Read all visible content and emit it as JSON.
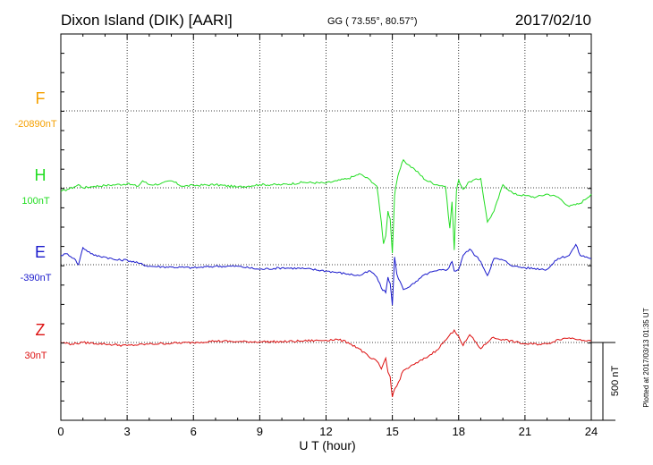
{
  "header": {
    "station": "Dixon Island (DIK)  [AARI]",
    "coords": "GG ( 73.55°,  80.57°)",
    "date": "2017/02/10"
  },
  "side_note": "Plotted at 2017/03/13 01:35 UT",
  "scale_label": "500 nT",
  "chart_data": {
    "type": "line",
    "xlabel": "U T (hour)",
    "xlim": [
      0,
      24
    ],
    "xticks": [
      "0",
      "3",
      "6",
      "9",
      "12",
      "15",
      "18",
      "21",
      "24"
    ],
    "channels": [
      {
        "letter": "F",
        "baseline": "-20890nT",
        "color": "#f5a000"
      },
      {
        "letter": "H",
        "baseline": "100nT",
        "color": "#22dd22"
      },
      {
        "letter": "E",
        "baseline": "-390nT",
        "color": "#1a1acc"
      },
      {
        "letter": "Z",
        "baseline": "30nT",
        "color": "#dd1111"
      }
    ],
    "series": [
      {
        "name": "H",
        "color": "#22dd22",
        "x": [
          0,
          0.3,
          0.6,
          0.8,
          1.0,
          1.5,
          2.0,
          2.5,
          3.0,
          3.5,
          3.7,
          4.0,
          4.5,
          5.0,
          5.5,
          6.0,
          7.0,
          8.0,
          9.0,
          10.0,
          11.0,
          12.0,
          12.5,
          13.0,
          13.3,
          13.5,
          14.0,
          14.3,
          14.5,
          14.6,
          14.7,
          14.8,
          14.9,
          15.0,
          15.1,
          15.2,
          15.3,
          15.5,
          15.7,
          16.0,
          16.5,
          17.0,
          17.4,
          17.6,
          17.7,
          17.8,
          17.9,
          18.0,
          18.2,
          18.5,
          19.0,
          19.3,
          19.6,
          20.0,
          20.5,
          21.0,
          21.5,
          22.0,
          22.5,
          23.0,
          23.5,
          24.0
        ],
        "y": [
          -25,
          -10,
          5,
          20,
          0,
          10,
          15,
          20,
          25,
          10,
          45,
          20,
          25,
          45,
          10,
          15,
          20,
          5,
          20,
          20,
          35,
          30,
          45,
          60,
          75,
          90,
          50,
          10,
          -220,
          -360,
          -310,
          -150,
          -200,
          -420,
          -50,
          40,
          100,
          180,
          150,
          120,
          50,
          20,
          10,
          -260,
          -90,
          -400,
          -20,
          50,
          -10,
          40,
          60,
          -220,
          -150,
          20,
          -40,
          -50,
          -60,
          -40,
          -60,
          -120,
          -100,
          -40
        ]
      },
      {
        "name": "E",
        "color": "#1a1acc",
        "x": [
          0,
          0.3,
          0.6,
          0.8,
          1.0,
          1.5,
          2.0,
          2.5,
          3.0,
          3.5,
          4.0,
          5.0,
          6.0,
          7.0,
          8.0,
          9.0,
          10.0,
          11.0,
          12.0,
          13.0,
          13.5,
          14.0,
          14.3,
          14.5,
          14.7,
          14.8,
          14.9,
          15.0,
          15.1,
          15.2,
          15.5,
          16.0,
          16.5,
          17.0,
          17.5,
          17.7,
          17.8,
          18.0,
          18.2,
          18.5,
          19.0,
          19.3,
          19.6,
          20.0,
          20.5,
          21.0,
          22.0,
          22.5,
          23.0,
          23.3,
          23.5,
          24.0
        ],
        "y": [
          60,
          70,
          40,
          0,
          110,
          60,
          50,
          30,
          30,
          10,
          -10,
          -15,
          -20,
          -10,
          -10,
          -30,
          -20,
          -25,
          -40,
          -60,
          -70,
          -40,
          -80,
          -150,
          -180,
          -80,
          -120,
          -260,
          50,
          -60,
          -160,
          -120,
          -60,
          -40,
          -30,
          20,
          -40,
          -30,
          60,
          100,
          20,
          -70,
          40,
          30,
          -10,
          -20,
          -30,
          40,
          60,
          130,
          60,
          40
        ]
      },
      {
        "name": "Z",
        "color": "#dd1111",
        "x": [
          0,
          0.5,
          1.0,
          2.0,
          3.0,
          4.0,
          5.0,
          6.0,
          7.0,
          8.0,
          9.0,
          10.0,
          11.0,
          12.0,
          12.5,
          13.0,
          13.5,
          14.0,
          14.3,
          14.5,
          14.7,
          14.8,
          14.9,
          15.0,
          15.1,
          15.2,
          15.5,
          16.0,
          16.5,
          17.0,
          17.5,
          17.8,
          18.0,
          18.2,
          18.5,
          19.0,
          19.5,
          20.0,
          21.0,
          22.0,
          22.5,
          23.0,
          23.5,
          24.0
        ],
        "y": [
          0,
          -10,
          0,
          -10,
          -20,
          -10,
          -5,
          0,
          10,
          5,
          5,
          5,
          10,
          15,
          20,
          0,
          -40,
          -100,
          -120,
          -170,
          -100,
          -190,
          -220,
          -350,
          -300,
          -280,
          -180,
          -140,
          -100,
          -50,
          30,
          80,
          40,
          -20,
          50,
          -40,
          30,
          20,
          -10,
          -10,
          20,
          30,
          20,
          10
        ]
      }
    ]
  }
}
